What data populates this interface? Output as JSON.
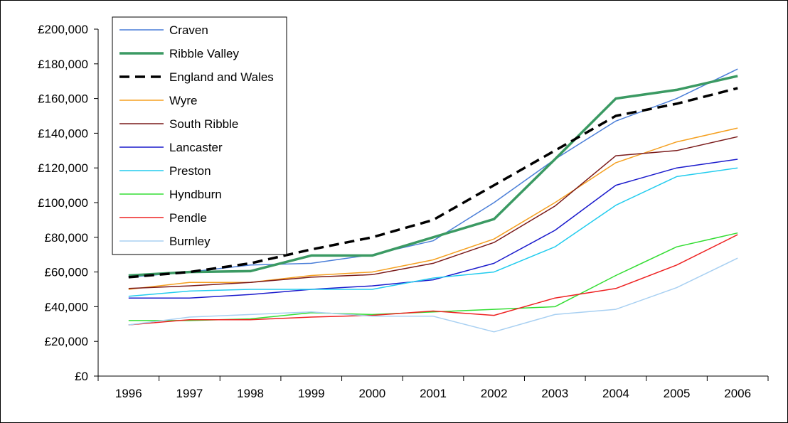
{
  "chart_data": {
    "type": "line",
    "title": "",
    "xlabel": "",
    "ylabel": "",
    "x": [
      "1996",
      "1997",
      "1998",
      "1999",
      "2000",
      "2001",
      "2002",
      "2003",
      "2004",
      "2005",
      "2006"
    ],
    "ylim": [
      0,
      200000
    ],
    "y_ticks": [
      0,
      20000,
      40000,
      60000,
      80000,
      100000,
      120000,
      140000,
      160000,
      180000,
      200000
    ],
    "y_tick_labels": [
      "£0",
      "£20,000",
      "£40,000",
      "£60,000",
      "£80,000",
      "£100,000",
      "£120,000",
      "£140,000",
      "£160,000",
      "£180,000",
      "£200,000"
    ],
    "grid": false,
    "legend_position": "top-left",
    "series": [
      {
        "name": "Craven",
        "color": "#4a7ed8",
        "width": 1.5,
        "dash": "",
        "values": [
          57000,
          60000,
          64000,
          65000,
          70000,
          78000,
          100000,
          125000,
          147000,
          160000,
          177000
        ]
      },
      {
        "name": "Ribble Valley",
        "color": "#3b9a63",
        "width": 3.5,
        "dash": "",
        "values": [
          58000,
          60000,
          60500,
          69500,
          69500,
          80000,
          90500,
          125000,
          160000,
          165000,
          173000
        ]
      },
      {
        "name": "England and Wales",
        "color": "#000000",
        "width": 3.5,
        "dash": "14,8",
        "values": [
          57000,
          60000,
          65000,
          73000,
          80000,
          90000,
          110000,
          130000,
          150000,
          157000,
          166000
        ]
      },
      {
        "name": "Wyre",
        "color": "#f5a020",
        "width": 1.5,
        "dash": "",
        "values": [
          50000,
          54000,
          54000,
          58000,
          60000,
          67000,
          79000,
          100000,
          123000,
          135000,
          143000
        ]
      },
      {
        "name": "South Ribble",
        "color": "#7a1a1a",
        "width": 1.5,
        "dash": "",
        "values": [
          50500,
          52000,
          54000,
          57000,
          58500,
          65000,
          77000,
          98000,
          127000,
          130000,
          138000
        ]
      },
      {
        "name": "Lancaster",
        "color": "#1a1acc",
        "width": 1.5,
        "dash": "",
        "values": [
          45000,
          45000,
          47000,
          50000,
          52000,
          55500,
          65000,
          84000,
          110000,
          120000,
          125000
        ]
      },
      {
        "name": "Preston",
        "color": "#22ccee",
        "width": 1.5,
        "dash": "",
        "values": [
          46000,
          49000,
          50000,
          50000,
          50000,
          56500,
          60000,
          74500,
          98500,
          115000,
          120000
        ]
      },
      {
        "name": "Hyndburn",
        "color": "#33dd33",
        "width": 1.5,
        "dash": "",
        "values": [
          32000,
          32000,
          33000,
          36500,
          35500,
          37000,
          38500,
          40000,
          58000,
          74500,
          82500
        ]
      },
      {
        "name": "Pendle",
        "color": "#ee2222",
        "width": 1.5,
        "dash": "",
        "values": [
          29500,
          32500,
          32500,
          34000,
          35000,
          37500,
          35000,
          45000,
          50500,
          64000,
          81500
        ]
      },
      {
        "name": "Burnley",
        "color": "#a8d0f2",
        "width": 1.5,
        "dash": "",
        "values": [
          29500,
          34000,
          35500,
          37000,
          34500,
          34500,
          25500,
          35500,
          38500,
          51000,
          68000
        ]
      }
    ]
  }
}
